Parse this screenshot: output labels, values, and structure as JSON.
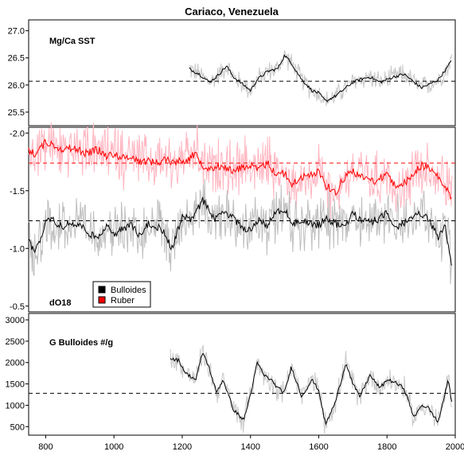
{
  "chart_data": {
    "type": "line",
    "title": "Cariaco, Venezuela",
    "x_axis": {
      "range": [
        750,
        2000
      ],
      "ticks": [
        "800",
        "1000",
        "1200",
        "1400",
        "1600",
        "1800",
        "2000"
      ]
    },
    "panels": [
      {
        "label": "Mg/Ca SST",
        "yrange": [
          25.25,
          27.2
        ],
        "yticks": [
          "25.5",
          "26.0",
          "26.5",
          "27.0"
        ],
        "reference": 26.07,
        "series": [
          {
            "name": "Mg/Ca SST",
            "raw_color": "#c8c8c8",
            "smooth_color": "#000000",
            "x": [
              1220,
              1250,
              1280,
              1300,
              1330,
              1350,
              1380,
              1400,
              1420,
              1450,
              1480,
              1500,
              1520,
              1550,
              1580,
              1600,
              1620,
              1650,
              1680,
              1700,
              1720,
              1750,
              1780,
              1800,
              1820,
              1850,
              1880,
              1900,
              1920,
              1950,
              1980,
              1990
            ],
            "y": [
              26.3,
              26.2,
              26.05,
              26.15,
              26.35,
              26.15,
              26.0,
              25.9,
              26.1,
              26.25,
              26.3,
              26.55,
              26.4,
              26.1,
              25.9,
              25.85,
              25.7,
              25.8,
              25.95,
              26.05,
              26.1,
              26.15,
              26.05,
              26.1,
              26.15,
              26.2,
              26.05,
              25.95,
              26.0,
              26.1,
              26.35,
              26.5
            ]
          }
        ]
      },
      {
        "label": "dO18",
        "yrange": [
          -0.45,
          -2.05
        ],
        "yticks": [
          "-2.0",
          "-1.5",
          "-1.0",
          "-0.5"
        ],
        "inverted": true,
        "references": [
          -1.74,
          -1.24
        ],
        "legend": {
          "placement": "bottom-left",
          "entries": [
            {
              "name": "Bulloides",
              "color": "#000000"
            },
            {
              "name": "Ruber",
              "color": "#ff0000"
            }
          ]
        },
        "series": [
          {
            "name": "Ruber",
            "raw_color": "#ffb6c1",
            "smooth_color": "#ff0000",
            "reference": -1.74,
            "x": [
              750,
              770,
              800,
              820,
              850,
              870,
              900,
              920,
              950,
              980,
              1000,
              1030,
              1050,
              1080,
              1100,
              1130,
              1150,
              1170,
              1200,
              1220,
              1240,
              1260,
              1280,
              1300,
              1320,
              1350,
              1370,
              1400,
              1420,
              1450,
              1470,
              1500,
              1520,
              1550,
              1570,
              1600,
              1620,
              1650,
              1670,
              1700,
              1720,
              1750,
              1770,
              1800,
              1820,
              1850,
              1870,
              1900,
              1920,
              1950,
              1970,
              1990
            ],
            "y": [
              -1.85,
              -1.82,
              -1.92,
              -1.9,
              -1.86,
              -1.87,
              -1.85,
              -1.82,
              -1.86,
              -1.8,
              -1.82,
              -1.78,
              -1.8,
              -1.75,
              -1.76,
              -1.74,
              -1.78,
              -1.75,
              -1.76,
              -1.78,
              -1.82,
              -1.72,
              -1.7,
              -1.7,
              -1.72,
              -1.66,
              -1.7,
              -1.72,
              -1.68,
              -1.74,
              -1.66,
              -1.65,
              -1.55,
              -1.62,
              -1.62,
              -1.68,
              -1.55,
              -1.48,
              -1.6,
              -1.68,
              -1.62,
              -1.6,
              -1.58,
              -1.66,
              -1.55,
              -1.56,
              -1.62,
              -1.72,
              -1.7,
              -1.62,
              -1.52,
              -1.44
            ]
          },
          {
            "name": "Bulloides",
            "raw_color": "#bebebe",
            "smooth_color": "#000000",
            "reference": -1.24,
            "x": [
              750,
              770,
              800,
              820,
              850,
              870,
              900,
              920,
              950,
              980,
              1000,
              1030,
              1050,
              1080,
              1100,
              1130,
              1150,
              1170,
              1200,
              1220,
              1240,
              1260,
              1280,
              1300,
              1320,
              1350,
              1370,
              1400,
              1420,
              1450,
              1470,
              1500,
              1520,
              1550,
              1570,
              1600,
              1620,
              1650,
              1670,
              1700,
              1720,
              1750,
              1770,
              1800,
              1820,
              1850,
              1870,
              1900,
              1920,
              1950,
              1970,
              1990
            ],
            "y": [
              -1.05,
              -0.98,
              -1.22,
              -1.25,
              -1.18,
              -1.22,
              -1.2,
              -1.15,
              -1.08,
              -1.22,
              -1.1,
              -1.18,
              -1.2,
              -1.1,
              -1.22,
              -1.18,
              -1.12,
              -1.0,
              -1.28,
              -1.25,
              -1.3,
              -1.42,
              -1.32,
              -1.25,
              -1.32,
              -1.26,
              -1.2,
              -1.15,
              -1.24,
              -1.2,
              -1.3,
              -1.35,
              -1.2,
              -1.25,
              -1.22,
              -1.2,
              -1.25,
              -1.22,
              -1.18,
              -1.3,
              -1.26,
              -1.22,
              -1.25,
              -1.3,
              -1.18,
              -1.22,
              -1.25,
              -1.3,
              -1.25,
              -1.1,
              -1.2,
              -0.85
            ]
          }
        ]
      },
      {
        "label": "G Bulloides #/g",
        "yrange": [
          300,
          3150
        ],
        "yticks": [
          "500",
          "1000",
          "1500",
          "2000",
          "2500",
          "3000"
        ],
        "reference": 1280,
        "series": [
          {
            "name": "G Bulloides #/g",
            "raw_color": "#c8c8c8",
            "smooth_color": "#000000",
            "x": [
              1165,
              1190,
              1210,
              1240,
              1260,
              1280,
              1300,
              1320,
              1350,
              1380,
              1400,
              1420,
              1440,
              1460,
              1480,
              1500,
              1520,
              1550,
              1580,
              1600,
              1620,
              1650,
              1680,
              1700,
              1720,
              1750,
              1780,
              1800,
              1820,
              1850,
              1880,
              1900,
              1920,
              1950,
              1980,
              1990
            ],
            "y": [
              2100,
              2050,
              1750,
              1600,
              2250,
              1850,
              1300,
              1600,
              900,
              650,
              1250,
              2000,
              1700,
              1600,
              1400,
              1300,
              1900,
              1200,
              1600,
              1350,
              550,
              1100,
              2000,
              1500,
              1200,
              1700,
              1400,
              1600,
              1550,
              1400,
              700,
              1000,
              950,
              600,
              1600,
              1050
            ]
          }
        ]
      }
    ]
  }
}
